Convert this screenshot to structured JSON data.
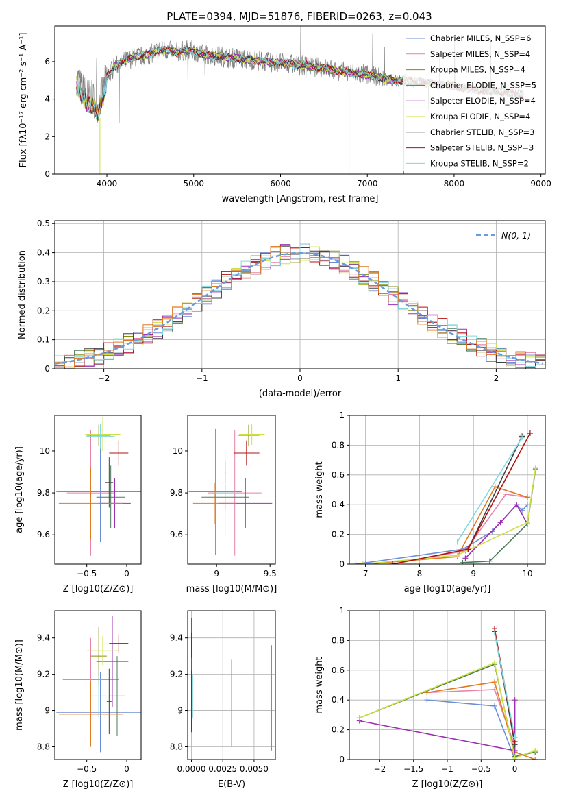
{
  "title": "PLATE=0394, MJD=51876, FIBERID=0263, z=0.043",
  "colors": [
    "#6a8fd8",
    "#e882a8",
    "#8a8a10",
    "#4a7a5a",
    "#9b30b0",
    "#d0e040",
    "#404040",
    "#b01010",
    "#80d8e0"
  ],
  "chart_data": [
    {
      "id": "spectrum",
      "type": "line",
      "xlabel": "wavelength [Angstrom, rest frame]",
      "ylabel": "Flux [fλ10⁻¹⁷ erg cm⁻² s⁻¹ A⁻¹]",
      "xlim": [
        3400,
        9050
      ],
      "ylim": [
        0,
        7.9
      ],
      "xticks": [
        4000,
        5000,
        6000,
        7000,
        8000,
        9000
      ],
      "yticks": [
        0,
        2,
        4,
        6
      ],
      "legend_position": "top-right",
      "legend": [
        {
          "label": "Chabrier MILES, N_SSP=6",
          "color": "#6a8fd8"
        },
        {
          "label": "Salpeter MILES, N_SSP=4",
          "color": "#e882a8"
        },
        {
          "label": "Kroupa MILES, N_SSP=4",
          "color": "#8a8a10"
        },
        {
          "label": "Chabrier ELODIE, N_SSP=5",
          "color": "#4a7a5a"
        },
        {
          "label": "Salpeter ELODIE, N_SSP=4",
          "color": "#9b30b0"
        },
        {
          "label": "Kroupa ELODIE, N_SSP=4",
          "color": "#d0e040"
        },
        {
          "label": "Chabrier STELIB, N_SSP=3",
          "color": "#404040"
        },
        {
          "label": "Salpeter STELIB, N_SSP=3",
          "color": "#b01010"
        },
        {
          "label": "Kroupa STELIB, N_SSP=2",
          "color": "#80d8e0"
        }
      ],
      "data_color": "#808080",
      "continuum": [
        [
          3650,
          5.2
        ],
        [
          3700,
          4.6
        ],
        [
          3750,
          4.3
        ],
        [
          3800,
          4.1
        ],
        [
          3850,
          4.0
        ],
        [
          3900,
          3.6
        ],
        [
          3950,
          4.4
        ],
        [
          4000,
          5.2
        ],
        [
          4100,
          5.8
        ],
        [
          4200,
          6.0
        ],
        [
          4300,
          6.2
        ],
        [
          4400,
          6.3
        ],
        [
          4500,
          6.4
        ],
        [
          4600,
          6.6
        ],
        [
          4700,
          6.6
        ],
        [
          4800,
          6.5
        ],
        [
          4900,
          6.6
        ],
        [
          5000,
          6.6
        ],
        [
          5100,
          6.4
        ],
        [
          5200,
          6.3
        ],
        [
          5300,
          6.3
        ],
        [
          5400,
          6.2
        ],
        [
          5500,
          6.2
        ],
        [
          5600,
          6.1
        ],
        [
          5700,
          6.1
        ],
        [
          5800,
          6.0
        ],
        [
          5900,
          5.95
        ],
        [
          6000,
          5.95
        ],
        [
          6100,
          5.9
        ],
        [
          6200,
          5.8
        ],
        [
          6300,
          5.8
        ],
        [
          6400,
          5.7
        ],
        [
          6500,
          5.7
        ],
        [
          6600,
          5.55
        ],
        [
          6700,
          5.5
        ],
        [
          6800,
          5.4
        ],
        [
          6900,
          5.35
        ],
        [
          7000,
          5.3
        ],
        [
          7100,
          5.2
        ],
        [
          7200,
          5.1
        ],
        [
          7300,
          5.0
        ],
        [
          7400,
          5.0
        ],
        [
          7500,
          4.95
        ],
        [
          7600,
          4.9
        ],
        [
          7700,
          4.85
        ],
        [
          7800,
          4.8
        ],
        [
          7900,
          4.75
        ],
        [
          8000,
          4.7
        ],
        [
          8100,
          4.6
        ],
        [
          8200,
          4.55
        ],
        [
          8300,
          4.5
        ],
        [
          8400,
          4.45
        ],
        [
          8500,
          4.4
        ],
        [
          8600,
          4.35
        ],
        [
          8700,
          4.3
        ],
        [
          8800,
          4.25
        ]
      ]
    },
    {
      "id": "residuals",
      "type": "histogram",
      "xlabel": "(data-model)/error",
      "ylabel": "Normed distribution",
      "xlim": [
        -2.5,
        2.5
      ],
      "ylim": [
        0,
        0.51
      ],
      "xticks": [
        -2,
        -1,
        0,
        1,
        2
      ],
      "yticks": [
        0.0,
        0.1,
        0.2,
        0.3,
        0.4,
        0.5
      ],
      "grid": true,
      "legend_position": "top-right",
      "legend": [
        {
          "label": "N(0, 1)",
          "color": "#6a9ae0"
        }
      ],
      "bin_width": 0.1
    },
    {
      "id": "z-age",
      "type": "scatter",
      "xlabel": "Z [log10(Z/Z⊙)]",
      "ylabel": "age [log10(age/yr)]",
      "xlim": [
        -0.9,
        0.18
      ],
      "ylim": [
        9.46,
        10.17
      ],
      "xticks": [
        -0.5,
        0.0
      ],
      "yticks": [
        9.6,
        9.8,
        10.0
      ],
      "points": [
        {
          "color": "#6a8fd8",
          "x": -0.33,
          "xerr": 0.55,
          "y": 9.805,
          "yerr": 0.24
        },
        {
          "color": "#e882a8",
          "x": -0.45,
          "xerr": 0.3,
          "y": 9.8,
          "yerr": 0.3
        },
        {
          "color": "#8a8a10",
          "x": -0.35,
          "xerr": 0.15,
          "y": 10.075,
          "yerr": 0.05
        },
        {
          "color": "#4a7a5a",
          "x": -0.2,
          "xerr": 0.18,
          "y": 9.78,
          "yerr": 0.15
        },
        {
          "color": "#9b30b0",
          "x": -0.15,
          "xerr": 0.2,
          "y": 9.75,
          "yerr": 0.12
        },
        {
          "color": "#d0e040",
          "x": -0.3,
          "xerr": 0.22,
          "y": 10.08,
          "yerr": 0.08
        },
        {
          "color": "#404040",
          "x": -0.22,
          "xerr": 0.05,
          "y": 9.85,
          "yerr": 0.12
        },
        {
          "color": "#b01010",
          "x": -0.1,
          "xerr": 0.12,
          "y": 9.99,
          "yerr": 0.06
        },
        {
          "color": "#80d8e0",
          "x": -0.33,
          "xerr": 0.18,
          "y": 10.07,
          "yerr": 0.06
        },
        {
          "color": "#e07a20",
          "x": -0.45,
          "xerr": 0.4,
          "y": 9.75,
          "yerr": 0.17
        }
      ]
    },
    {
      "id": "mass-age",
      "type": "scatter",
      "xlabel": "mass [log10(M/M⊙)]",
      "ylabel": "",
      "xlim": [
        8.73,
        9.55
      ],
      "ylim": [
        9.46,
        10.17
      ],
      "xticks": [
        9.0,
        9.5
      ],
      "yticks": [
        9.6,
        9.8,
        10.0
      ],
      "points": [
        {
          "color": "#6a8fd8",
          "x": 8.99,
          "xerr": 0.25,
          "y": 9.805,
          "yerr": 0.3
        },
        {
          "color": "#e882a8",
          "x": 9.17,
          "xerr": 0.25,
          "y": 9.8,
          "yerr": 0.3
        },
        {
          "color": "#8a8a10",
          "x": 9.3,
          "xerr": 0.1,
          "y": 10.075,
          "yerr": 0.05
        },
        {
          "color": "#4a7a5a",
          "x": 9.08,
          "xerr": 0.22,
          "y": 9.78,
          "yerr": 0.06
        },
        {
          "color": "#9b30b0",
          "x": 9.27,
          "xerr": 0.25,
          "y": 9.75,
          "yerr": 0.12
        },
        {
          "color": "#d0e040",
          "x": 9.33,
          "xerr": 0.12,
          "y": 10.08,
          "yerr": 0.05
        },
        {
          "color": "#404040",
          "x": 9.08,
          "xerr": 0.03,
          "y": 9.9,
          "yerr": 0.05
        },
        {
          "color": "#b01010",
          "x": 9.28,
          "xerr": 0.12,
          "y": 9.99,
          "yerr": 0.06
        },
        {
          "color": "#80d8e0",
          "x": 9.08,
          "xerr": 0.1,
          "y": 9.8,
          "yerr": 0.2
        },
        {
          "color": "#e07a20",
          "x": 8.98,
          "xerr": 0.2,
          "y": 9.75,
          "yerr": 0.1
        }
      ]
    },
    {
      "id": "age-weight",
      "type": "line",
      "xlabel": "age [log10(age/yr)]",
      "ylabel": "mass weight",
      "xlim": [
        6.7,
        10.33
      ],
      "ylim": [
        0,
        1.0
      ],
      "xticks": [
        7,
        8,
        9,
        10
      ],
      "yticks": [
        0.0,
        0.2,
        0.4,
        0.6,
        0.8,
        1.0
      ],
      "grid": true,
      "series": [
        {
          "color": "#6a8fd8",
          "x": [
            6.82,
            8.8,
            9.35,
            9.8,
            9.9,
            10.0
          ],
          "y": [
            0.0,
            0.1,
            0.22,
            0.4,
            0.36,
            0.4
          ]
        },
        {
          "color": "#e882a8",
          "x": [
            7.5,
            8.85,
            9.6,
            10.0
          ],
          "y": [
            0.0,
            0.09,
            0.47,
            0.45
          ]
        },
        {
          "color": "#e07a20",
          "x": [
            7.0,
            8.7,
            9.4,
            10.0
          ],
          "y": [
            0.0,
            0.05,
            0.52,
            0.45
          ]
        },
        {
          "color": "#4a7a5a",
          "x": [
            8.8,
            9.3,
            10.0,
            10.15
          ],
          "y": [
            0.01,
            0.02,
            0.27,
            0.64
          ]
        },
        {
          "color": "#9b30b0",
          "x": [
            8.85,
            9.5,
            9.8,
            10.0
          ],
          "y": [
            0.04,
            0.28,
            0.4,
            0.27
          ]
        },
        {
          "color": "#d0e040",
          "x": [
            6.95,
            8.7,
            10.0,
            10.15
          ],
          "y": [
            0.0,
            0.06,
            0.28,
            0.65
          ]
        },
        {
          "color": "#404040",
          "x": [
            8.9,
            9.9
          ],
          "y": [
            0.1,
            0.86
          ]
        },
        {
          "color": "#b01010",
          "x": [
            7.5,
            8.9,
            10.05
          ],
          "y": [
            0.0,
            0.1,
            0.88
          ]
        },
        {
          "color": "#80d8e0",
          "x": [
            8.7,
            9.9
          ],
          "y": [
            0.15,
            0.85
          ]
        }
      ]
    },
    {
      "id": "z-mass",
      "type": "scatter",
      "xlabel": "Z [log10(Z/Z⊙)]",
      "ylabel": "mass [log10(M/M⊙)]",
      "xlim": [
        -0.9,
        0.18
      ],
      "ylim": [
        8.73,
        9.55
      ],
      "xticks": [
        -0.5,
        0.0
      ],
      "yticks": [
        8.8,
        9.0,
        9.2,
        9.4
      ],
      "points": [
        {
          "color": "#6a8fd8",
          "x": -0.33,
          "xerr": 0.55,
          "y": 8.99,
          "yerr": 0.22
        },
        {
          "color": "#e882a8",
          "x": -0.45,
          "xerr": 0.35,
          "y": 9.17,
          "yerr": 0.23
        },
        {
          "color": "#8a8a10",
          "x": -0.35,
          "xerr": 0.1,
          "y": 9.3,
          "yerr": 0.16
        },
        {
          "color": "#4a7a5a",
          "x": -0.12,
          "xerr": 0.1,
          "y": 9.08,
          "yerr": 0.22
        },
        {
          "color": "#9b30b0",
          "x": -0.18,
          "xerr": 0.2,
          "y": 9.27,
          "yerr": 0.25
        },
        {
          "color": "#d0e040",
          "x": -0.3,
          "xerr": 0.2,
          "y": 9.33,
          "yerr": 0.08
        },
        {
          "color": "#404040",
          "x": -0.22,
          "xerr": 0.03,
          "y": 9.05,
          "yerr": 0.18
        },
        {
          "color": "#b01010",
          "x": -0.1,
          "xerr": 0.12,
          "y": 9.37,
          "yerr": 0.05
        },
        {
          "color": "#80d8e0",
          "x": -0.35,
          "xerr": 0.1,
          "y": 9.08,
          "yerr": 0.12
        },
        {
          "color": "#e07a20",
          "x": -0.45,
          "xerr": 0.4,
          "y": 8.98,
          "yerr": 0.18
        }
      ]
    },
    {
      "id": "ebv-mass",
      "type": "scatter",
      "xlabel": "E(B-V)",
      "ylabel": "",
      "xlim": [
        -0.0003,
        0.0067
      ],
      "ylim": [
        8.73,
        9.55
      ],
      "xticks": [
        0.0,
        0.0025,
        0.005
      ],
      "xtick_labels": [
        "0.0000",
        "0.0025",
        "0.0050"
      ],
      "yticks": [
        8.8,
        9.0,
        9.2,
        9.4
      ],
      "grid": true,
      "points": [
        {
          "color": "#6a8fd8",
          "x": 0.0064,
          "y": 9.07,
          "yerr": 0.29
        },
        {
          "color": "#e07a20",
          "x": 0.0032,
          "y": 9.04,
          "yerr": 0.24
        },
        {
          "color": "#9b30b0",
          "x": 0.0,
          "y": 9.33,
          "yerr": 0.18
        },
        {
          "color": "#b01010",
          "x": 0.0,
          "y": 9.36,
          "yerr": 0.07
        },
        {
          "color": "#404040",
          "x": 0.0,
          "y": 9.05,
          "yerr": 0.17
        },
        {
          "color": "#80d8e0",
          "x": 0.0001,
          "y": 9.08,
          "yerr": 0.12
        }
      ]
    },
    {
      "id": "z-weight",
      "type": "line",
      "xlabel": "Z [log10(Z/Z⊙)]",
      "ylabel": "mass weight",
      "xlim": [
        -2.45,
        0.45
      ],
      "ylim": [
        0,
        1.0
      ],
      "xticks": [
        -2.0,
        -1.5,
        -1.0,
        -0.5,
        0.0
      ],
      "yticks": [
        0.0,
        0.2,
        0.4,
        0.6,
        0.8,
        1.0
      ],
      "grid": true,
      "series": [
        {
          "color": "#6a8fd8",
          "x": [
            -1.3,
            -0.3,
            0.0
          ],
          "y": [
            0.4,
            0.36,
            0.0
          ]
        },
        {
          "color": "#e882a8",
          "x": [
            -1.3,
            -0.3,
            0.0
          ],
          "y": [
            0.45,
            0.47,
            0.09
          ]
        },
        {
          "color": "#e07a20",
          "x": [
            -1.3,
            -0.3,
            0.0,
            0.3
          ],
          "y": [
            0.45,
            0.52,
            0.05,
            0.0
          ]
        },
        {
          "color": "#4a7a5a",
          "x": [
            -2.3,
            -0.3,
            0.0,
            0.3
          ],
          "y": [
            0.28,
            0.64,
            0.02,
            0.05
          ]
        },
        {
          "color": "#9b30b0",
          "x": [
            -2.3,
            0.0,
            0.0
          ],
          "y": [
            0.26,
            0.06,
            0.4
          ]
        },
        {
          "color": "#d0e040",
          "x": [
            -2.3,
            -0.3,
            0.0,
            0.3
          ],
          "y": [
            0.28,
            0.65,
            0.01,
            0.06
          ]
        },
        {
          "color": "#404040",
          "x": [
            -0.3,
            0.0
          ],
          "y": [
            0.86,
            0.1
          ]
        },
        {
          "color": "#b01010",
          "x": [
            -0.3,
            0.0
          ],
          "y": [
            0.88,
            0.12
          ]
        },
        {
          "color": "#80d8e0",
          "x": [
            -0.3,
            0.0
          ],
          "y": [
            0.85,
            0.15
          ]
        }
      ]
    }
  ]
}
